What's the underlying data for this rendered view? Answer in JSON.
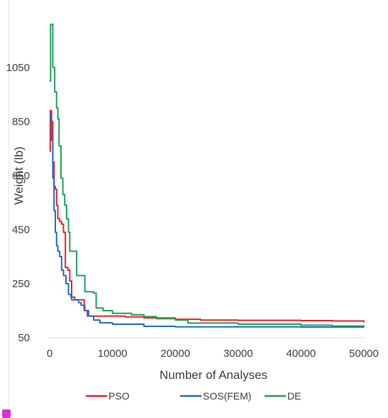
{
  "chart_data": {
    "type": "line",
    "title": "",
    "xlabel": "Number of Analyses",
    "ylabel": "Weight (lb)",
    "xlim": [
      0,
      50000
    ],
    "ylim": [
      50,
      1250
    ],
    "x_ticks": [
      "0",
      "10000",
      "20000",
      "30000",
      "40000",
      "50000"
    ],
    "y_ticks": [
      "50",
      "250",
      "450",
      "650",
      "850",
      "1050"
    ],
    "grid": false,
    "legend": "bottom",
    "series": [
      {
        "name": "PSO",
        "color": "#e8232a",
        "points": [
          [
            0,
            740
          ],
          [
            100,
            890
          ],
          [
            300,
            850
          ],
          [
            500,
            700
          ],
          [
            700,
            610
          ],
          [
            900,
            600
          ],
          [
            1100,
            540
          ],
          [
            1300,
            490
          ],
          [
            1600,
            480
          ],
          [
            1900,
            470
          ],
          [
            2200,
            440
          ],
          [
            2500,
            310
          ],
          [
            2900,
            300
          ],
          [
            3200,
            260
          ],
          [
            3500,
            190
          ],
          [
            4500,
            190
          ],
          [
            5500,
            150
          ],
          [
            6000,
            130
          ],
          [
            8000,
            130
          ],
          [
            12000,
            127
          ],
          [
            15000,
            123
          ],
          [
            20000,
            118
          ],
          [
            24000,
            115
          ],
          [
            30000,
            114
          ],
          [
            40000,
            113
          ],
          [
            45000,
            112
          ],
          [
            50000,
            107
          ]
        ]
      },
      {
        "name": "SOS(FEM)",
        "color": "#1f6fc2",
        "points": [
          [
            0,
            880
          ],
          [
            150,
            860
          ],
          [
            300,
            780
          ],
          [
            500,
            640
          ],
          [
            700,
            520
          ],
          [
            900,
            440
          ],
          [
            1100,
            390
          ],
          [
            1300,
            370
          ],
          [
            1600,
            350
          ],
          [
            1900,
            300
          ],
          [
            2200,
            280
          ],
          [
            2600,
            250
          ],
          [
            3000,
            210
          ],
          [
            3400,
            200
          ],
          [
            4000,
            190
          ],
          [
            4600,
            180
          ],
          [
            5000,
            170
          ],
          [
            5600,
            150
          ],
          [
            6200,
            130
          ],
          [
            7000,
            115
          ],
          [
            8000,
            105
          ],
          [
            10000,
            100
          ],
          [
            15000,
            92
          ],
          [
            20000,
            90
          ],
          [
            30000,
            90
          ],
          [
            40000,
            89
          ],
          [
            50000,
            88
          ]
        ]
      },
      {
        "name": "DE",
        "color": "#1fa25a",
        "points": [
          [
            0,
            1000
          ],
          [
            150,
            1210
          ],
          [
            400,
            1210
          ],
          [
            500,
            1050
          ],
          [
            800,
            960
          ],
          [
            1100,
            900
          ],
          [
            1300,
            860
          ],
          [
            1500,
            760
          ],
          [
            1800,
            640
          ],
          [
            2100,
            580
          ],
          [
            2400,
            540
          ],
          [
            2700,
            490
          ],
          [
            3000,
            440
          ],
          [
            3200,
            370
          ],
          [
            4000,
            370
          ],
          [
            4300,
            280
          ],
          [
            5000,
            280
          ],
          [
            5600,
            220
          ],
          [
            7000,
            215
          ],
          [
            7400,
            160
          ],
          [
            8500,
            150
          ],
          [
            10000,
            140
          ],
          [
            13000,
            135
          ],
          [
            15000,
            128
          ],
          [
            17000,
            120
          ],
          [
            20000,
            115
          ],
          [
            22000,
            104
          ],
          [
            30000,
            100
          ],
          [
            40000,
            96
          ],
          [
            45000,
            93
          ],
          [
            50000,
            92
          ]
        ]
      }
    ]
  }
}
